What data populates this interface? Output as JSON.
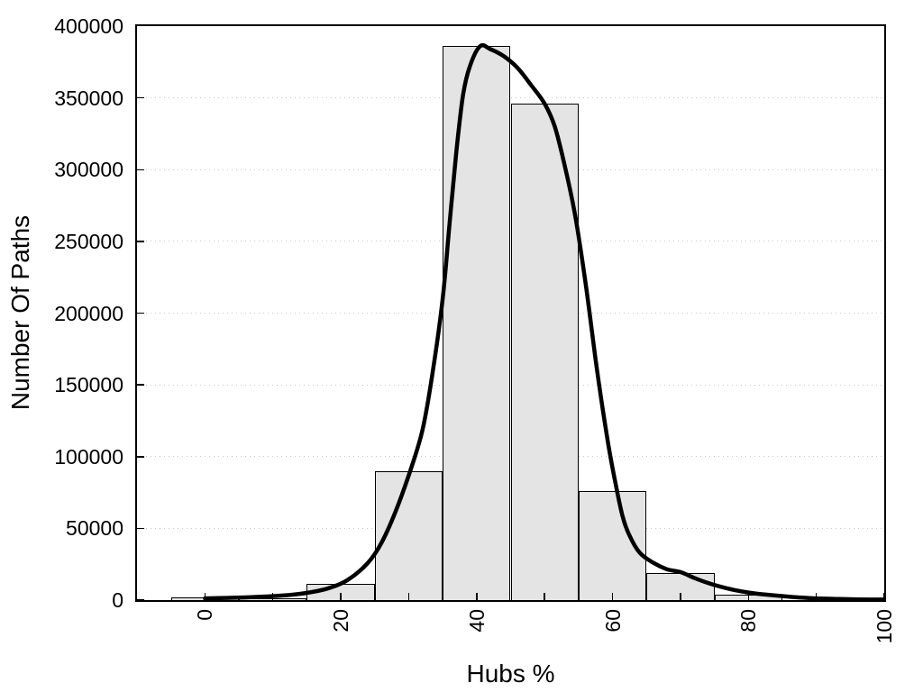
{
  "figure": {
    "title": "",
    "background": "#ffffff"
  },
  "chart_data": {
    "type": "bar",
    "subtype": "histogram-with-density-curve-overlay",
    "title": "",
    "xlabel": "Hubs %",
    "ylabel": "Number Of Paths",
    "xlim": [
      -10,
      100
    ],
    "ylim": [
      0,
      400000
    ],
    "grid": "horizontal-dotted-lines-at-y-major-ticks",
    "legend": "none",
    "x_major_ticks": [
      0,
      20,
      40,
      60,
      80,
      100
    ],
    "x_tick_labels": [
      "0",
      "20",
      "40",
      "60",
      "80",
      "100"
    ],
    "x_minor_ticks": [
      10,
      30,
      50,
      70,
      90
    ],
    "x_tick_labels_rotated_degrees": 90,
    "y_ticks": [
      0,
      50000,
      100000,
      150000,
      200000,
      250000,
      300000,
      350000,
      400000
    ],
    "y_tick_labels": [
      "0",
      "50000",
      "100000",
      "150000",
      "200000",
      "250000",
      "300000",
      "350000",
      "400000"
    ],
    "histogram": {
      "bin_width": 10,
      "bin_centers": [
        0,
        10,
        20,
        30,
        40,
        50,
        60,
        70,
        80
      ],
      "counts": [
        2000,
        1000,
        11000,
        90000,
        386000,
        346000,
        76000,
        19000,
        3500
      ],
      "fill_color": "#e4e4e4",
      "border_color": "#000000"
    },
    "density_curve": {
      "color": "#000000",
      "stroke_width": 4.5,
      "points": [
        [
          0,
          1200
        ],
        [
          3,
          1500
        ],
        [
          6,
          1900
        ],
        [
          9,
          2500
        ],
        [
          12,
          3400
        ],
        [
          15,
          5000
        ],
        [
          18,
          8000
        ],
        [
          21,
          14000
        ],
        [
          24,
          26000
        ],
        [
          26,
          40000
        ],
        [
          28,
          61000
        ],
        [
          30,
          87000
        ],
        [
          32,
          118000
        ],
        [
          33.5,
          158000
        ],
        [
          35,
          210000
        ],
        [
          36,
          262000
        ],
        [
          37,
          312000
        ],
        [
          38,
          352000
        ],
        [
          39,
          372000
        ],
        [
          40.5,
          386000
        ],
        [
          42,
          384000
        ],
        [
          44,
          379000
        ],
        [
          46,
          371000
        ],
        [
          48,
          359000
        ],
        [
          50,
          346000
        ],
        [
          51.5,
          330000
        ],
        [
          53,
          302000
        ],
        [
          54.5,
          268000
        ],
        [
          56,
          222000
        ],
        [
          57.5,
          168000
        ],
        [
          58.5,
          135000
        ],
        [
          59.5,
          105000
        ],
        [
          60.5,
          80000
        ],
        [
          61.5,
          58000
        ],
        [
          62.5,
          45000
        ],
        [
          64,
          33000
        ],
        [
          66,
          26000
        ],
        [
          68,
          21500
        ],
        [
          70,
          19500
        ],
        [
          72,
          15500
        ],
        [
          74,
          12000
        ],
        [
          76,
          9200
        ],
        [
          78,
          7000
        ],
        [
          80,
          5300
        ],
        [
          82,
          4100
        ],
        [
          84,
          3200
        ],
        [
          86,
          2400
        ],
        [
          88,
          1700
        ],
        [
          90,
          1200
        ],
        [
          93,
          800
        ],
        [
          96,
          500
        ],
        [
          100,
          350
        ]
      ]
    },
    "style": {
      "axis_box_color": "#000000",
      "grid_color": "#c9c9c9",
      "text_color": "#000000",
      "tick_direction": "inside"
    }
  }
}
